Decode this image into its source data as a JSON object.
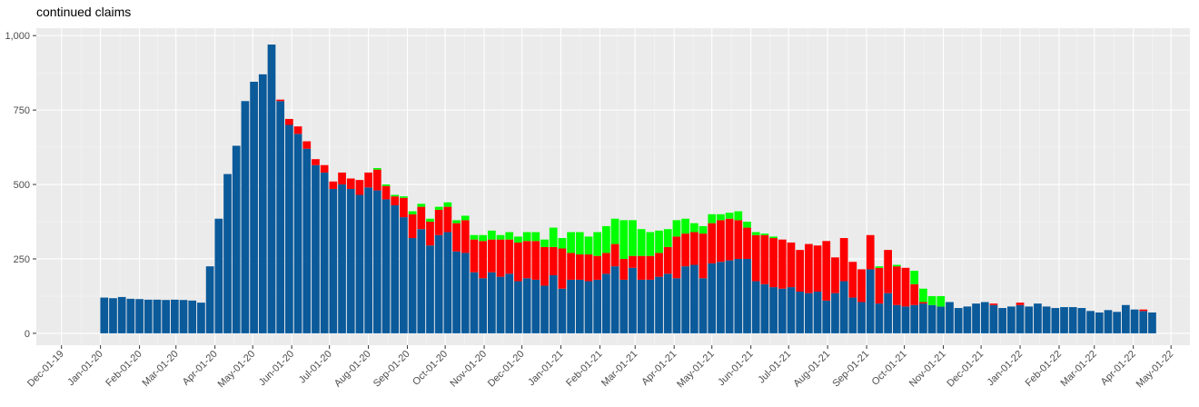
{
  "chart_data": {
    "type": "stacked_bar",
    "title": "continued claims",
    "x": [
      "2020-01-04",
      "2020-01-11",
      "2020-01-18",
      "2020-01-25",
      "2020-02-01",
      "2020-02-08",
      "2020-02-15",
      "2020-02-22",
      "2020-02-29",
      "2020-03-07",
      "2020-03-14",
      "2020-03-21",
      "2020-03-28",
      "2020-04-04",
      "2020-04-11",
      "2020-04-18",
      "2020-04-25",
      "2020-05-02",
      "2020-05-09",
      "2020-05-16",
      "2020-05-23",
      "2020-05-30",
      "2020-06-06",
      "2020-06-13",
      "2020-06-20",
      "2020-06-27",
      "2020-07-04",
      "2020-07-11",
      "2020-07-18",
      "2020-07-25",
      "2020-08-01",
      "2020-08-08",
      "2020-08-15",
      "2020-08-22",
      "2020-08-29",
      "2020-09-05",
      "2020-09-12",
      "2020-09-19",
      "2020-09-26",
      "2020-10-03",
      "2020-10-10",
      "2020-10-17",
      "2020-10-24",
      "2020-10-31",
      "2020-11-07",
      "2020-11-14",
      "2020-11-21",
      "2020-11-28",
      "2020-12-05",
      "2020-12-12",
      "2020-12-19",
      "2020-12-26",
      "2021-01-02",
      "2021-01-09",
      "2021-01-16",
      "2021-01-23",
      "2021-01-30",
      "2021-02-06",
      "2021-02-13",
      "2021-02-20",
      "2021-02-27",
      "2021-03-06",
      "2021-03-13",
      "2021-03-20",
      "2021-03-27",
      "2021-04-03",
      "2021-04-10",
      "2021-04-17",
      "2021-04-24",
      "2021-05-01",
      "2021-05-08",
      "2021-05-15",
      "2021-05-22",
      "2021-05-29",
      "2021-06-05",
      "2021-06-12",
      "2021-06-19",
      "2021-06-26",
      "2021-07-03",
      "2021-07-10",
      "2021-07-17",
      "2021-07-24",
      "2021-07-31",
      "2021-08-07",
      "2021-08-14",
      "2021-08-21",
      "2021-08-28",
      "2021-09-04",
      "2021-09-11",
      "2021-09-18",
      "2021-09-25",
      "2021-10-02",
      "2021-10-09",
      "2021-10-16",
      "2021-10-23",
      "2021-10-30",
      "2021-11-06",
      "2021-11-13",
      "2021-11-20",
      "2021-11-27",
      "2021-12-04",
      "2021-12-11",
      "2021-12-18",
      "2021-12-25",
      "2022-01-01",
      "2022-01-08",
      "2022-01-15",
      "2022-01-22",
      "2022-01-29",
      "2022-02-05",
      "2022-02-12",
      "2022-02-19",
      "2022-02-26",
      "2022-03-05",
      "2022-03-12",
      "2022-03-19",
      "2022-03-26",
      "2022-04-02",
      "2022-04-09",
      "2022-04-16"
    ],
    "series": [
      {
        "color": "#0b5a9a",
        "values": [
          120,
          118,
          122,
          116,
          115,
          113,
          113,
          112,
          113,
          112,
          110,
          103,
          225,
          385,
          535,
          630,
          780,
          845,
          870,
          970,
          780,
          700,
          670,
          620,
          565,
          540,
          485,
          500,
          485,
          465,
          490,
          480,
          450,
          430,
          390,
          320,
          350,
          295,
          330,
          340,
          275,
          270,
          205,
          185,
          205,
          190,
          200,
          175,
          185,
          180,
          160,
          195,
          150,
          180,
          180,
          175,
          180,
          200,
          225,
          180,
          220,
          180,
          180,
          190,
          200,
          185,
          225,
          230,
          185,
          235,
          240,
          245,
          250,
          250,
          175,
          165,
          155,
          150,
          155,
          140,
          135,
          140,
          110,
          135,
          175,
          120,
          105,
          215,
          100,
          135,
          95,
          90,
          95,
          100,
          95,
          90,
          105,
          85,
          90,
          100,
          105,
          95,
          85,
          90,
          95,
          90,
          100,
          90,
          85,
          88,
          88,
          85,
          75,
          70,
          78,
          72,
          95,
          80,
          75,
          70
        ]
      },
      {
        "color": "#ff0000",
        "values": [
          0,
          0,
          0,
          0,
          0,
          0,
          0,
          0,
          0,
          0,
          0,
          0,
          0,
          0,
          0,
          0,
          0,
          0,
          0,
          0,
          5,
          20,
          25,
          25,
          20,
          25,
          25,
          40,
          35,
          50,
          50,
          70,
          45,
          30,
          65,
          80,
          75,
          80,
          85,
          85,
          95,
          110,
          110,
          125,
          110,
          125,
          115,
          130,
          125,
          130,
          130,
          95,
          135,
          90,
          85,
          90,
          80,
          70,
          75,
          70,
          40,
          80,
          80,
          80,
          90,
          140,
          110,
          110,
          150,
          135,
          140,
          140,
          130,
          105,
          155,
          165,
          165,
          165,
          150,
          140,
          165,
          155,
          200,
          120,
          145,
          120,
          110,
          115,
          120,
          145,
          130,
          130,
          70,
          5,
          0,
          0,
          0,
          0,
          0,
          0,
          0,
          5,
          0,
          0,
          8,
          0,
          0,
          0,
          0,
          0,
          0,
          0,
          0,
          0,
          0,
          0,
          0,
          0,
          5,
          0
        ]
      },
      {
        "color": "#00ff00",
        "values": [
          0,
          0,
          0,
          0,
          0,
          0,
          0,
          0,
          0,
          0,
          0,
          0,
          0,
          0,
          0,
          0,
          0,
          0,
          0,
          0,
          0,
          0,
          0,
          0,
          0,
          0,
          0,
          0,
          0,
          0,
          0,
          5,
          5,
          5,
          5,
          10,
          10,
          10,
          10,
          15,
          10,
          15,
          15,
          20,
          30,
          15,
          25,
          20,
          30,
          30,
          25,
          65,
          35,
          70,
          75,
          60,
          80,
          90,
          85,
          130,
          120,
          90,
          80,
          75,
          60,
          55,
          50,
          30,
          25,
          30,
          20,
          20,
          30,
          20,
          10,
          5,
          5,
          0,
          0,
          0,
          0,
          0,
          0,
          0,
          0,
          0,
          0,
          0,
          5,
          0,
          5,
          0,
          45,
          45,
          30,
          35,
          0,
          0,
          0,
          0,
          0,
          0,
          0,
          0,
          0,
          0,
          0,
          0,
          0,
          0,
          0,
          0,
          0,
          0,
          0,
          0,
          0,
          0,
          0,
          0
        ]
      }
    ],
    "xlim": [
      "2019-11-11",
      "2022-05-16"
    ],
    "xticks": [
      {
        "value": "2019-12-01",
        "label": "Dec-01-19"
      },
      {
        "value": "2020-01-01",
        "label": "Jan-01-20"
      },
      {
        "value": "2020-02-01",
        "label": "Feb-01-20"
      },
      {
        "value": "2020-03-01",
        "label": "Mar-01-20"
      },
      {
        "value": "2020-04-01",
        "label": "Apr-01-20"
      },
      {
        "value": "2020-05-01",
        "label": "May-01-20"
      },
      {
        "value": "2020-06-01",
        "label": "Jun-01-20"
      },
      {
        "value": "2020-07-01",
        "label": "Jul-01-20"
      },
      {
        "value": "2020-08-01",
        "label": "Aug-01-20"
      },
      {
        "value": "2020-09-01",
        "label": "Sep-01-20"
      },
      {
        "value": "2020-10-01",
        "label": "Oct-01-20"
      },
      {
        "value": "2020-11-01",
        "label": "Nov-01-20"
      },
      {
        "value": "2020-12-01",
        "label": "Dec-01-20"
      },
      {
        "value": "2021-01-01",
        "label": "Jan-01-21"
      },
      {
        "value": "2021-02-01",
        "label": "Feb-01-21"
      },
      {
        "value": "2021-03-01",
        "label": "Mar-01-21"
      },
      {
        "value": "2021-04-01",
        "label": "Apr-01-21"
      },
      {
        "value": "2021-05-01",
        "label": "May-01-21"
      },
      {
        "value": "2021-06-01",
        "label": "Jun-01-21"
      },
      {
        "value": "2021-07-01",
        "label": "Jul-01-21"
      },
      {
        "value": "2021-08-01",
        "label": "Aug-01-21"
      },
      {
        "value": "2021-09-01",
        "label": "Sep-01-21"
      },
      {
        "value": "2021-10-01",
        "label": "Oct-01-21"
      },
      {
        "value": "2021-11-01",
        "label": "Nov-01-21"
      },
      {
        "value": "2021-12-01",
        "label": "Dec-01-21"
      },
      {
        "value": "2022-01-01",
        "label": "Jan-01-22"
      },
      {
        "value": "2022-02-01",
        "label": "Feb-01-22"
      },
      {
        "value": "2022-03-01",
        "label": "Mar-01-22"
      },
      {
        "value": "2022-04-01",
        "label": "Apr-01-22"
      },
      {
        "value": "2022-05-01",
        "label": "May-01-22"
      }
    ],
    "ylim": [
      -40,
      1025
    ],
    "yticks": [
      0,
      250,
      500,
      750,
      {
        "value": 1000,
        "label": "1,000"
      }
    ],
    "grid": true
  }
}
